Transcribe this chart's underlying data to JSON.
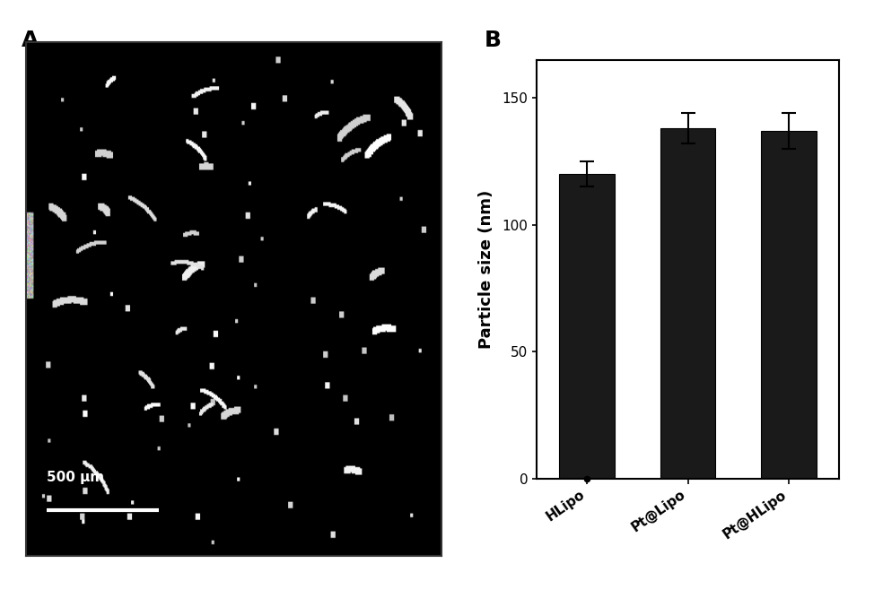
{
  "panel_a_label": "A",
  "panel_b_label": "B",
  "bar_categories": [
    "HLipo",
    "Pt@Lipo",
    "Pt@HLipo"
  ],
  "bar_values": [
    120,
    138,
    137
  ],
  "bar_errors": [
    5,
    6,
    7
  ],
  "bar_color": "#1a1a1a",
  "bar_edge_color": "#000000",
  "ylabel": "Particle size (nm)",
  "yticks": [
    0,
    50,
    100,
    150
  ],
  "ylim": [
    0,
    165
  ],
  "scalebar_text": "500 μm",
  "background_color": "#ffffff",
  "panel_label_fontsize": 18,
  "ylabel_fontsize": 13,
  "tick_fontsize": 11,
  "xtick_fontsize": 11,
  "img_noise_seed": 42,
  "num_spots": 60,
  "num_curved": 30
}
